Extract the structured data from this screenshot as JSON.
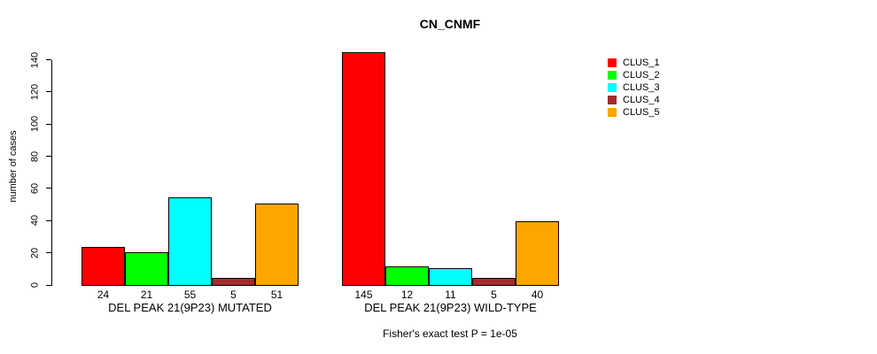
{
  "chart_data": {
    "type": "bar",
    "title": "CN_CNMF",
    "ylabel": "number of cases",
    "xlabel": "",
    "ylim": [
      0,
      140
    ],
    "yticks": [
      0,
      20,
      40,
      60,
      80,
      100,
      120,
      140
    ],
    "grid": false,
    "legend_position": "top-right",
    "bar_value_labels_shown": true,
    "categories": [
      "DEL PEAK 21(9P23) MUTATED",
      "DEL PEAK 21(9P23) WILD-TYPE"
    ],
    "series": [
      {
        "name": "CLUS_1",
        "color": "#FF0000",
        "values": [
          24,
          145
        ]
      },
      {
        "name": "CLUS_2",
        "color": "#00FF00",
        "values": [
          21,
          12
        ]
      },
      {
        "name": "CLUS_3",
        "color": "#00FFFF",
        "values": [
          55,
          11
        ]
      },
      {
        "name": "CLUS_4",
        "color": "#A52A2A",
        "values": [
          5,
          5
        ]
      },
      {
        "name": "CLUS_5",
        "color": "#FFA500",
        "values": [
          51,
          40
        ]
      }
    ],
    "footnote": "Fisher's exact test P = 1e-05"
  }
}
